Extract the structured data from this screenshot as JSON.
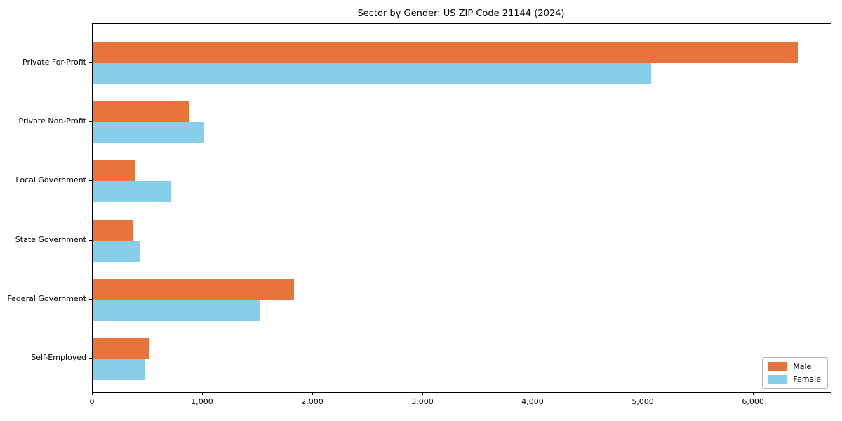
{
  "chart_data": {
    "type": "bar",
    "orientation": "horizontal",
    "title": "Sector by Gender: US ZIP Code 21144 (2024)",
    "categories": [
      "Private For-Profit",
      "Private Non-Profit",
      "Local Government",
      "State Government",
      "Federal Government",
      "Self-Employed"
    ],
    "series": [
      {
        "name": "Male",
        "color": "#e8743b",
        "values": [
          6400,
          870,
          380,
          370,
          1830,
          510
        ]
      },
      {
        "name": "Female",
        "color": "#87ceeb",
        "values": [
          5070,
          1010,
          710,
          430,
          1520,
          480
        ]
      }
    ],
    "xlabel": "",
    "ylabel": "",
    "xlim": [
      0,
      6700
    ],
    "xticks": [
      0,
      1000,
      2000,
      3000,
      4000,
      5000,
      6000
    ],
    "xtick_labels": [
      "0",
      "1,000",
      "2,000",
      "3,000",
      "4,000",
      "5,000",
      "6,000"
    ],
    "grid": false,
    "legend_position": "lower right",
    "background_color": "#ffffff",
    "spine_color": "#000000"
  }
}
